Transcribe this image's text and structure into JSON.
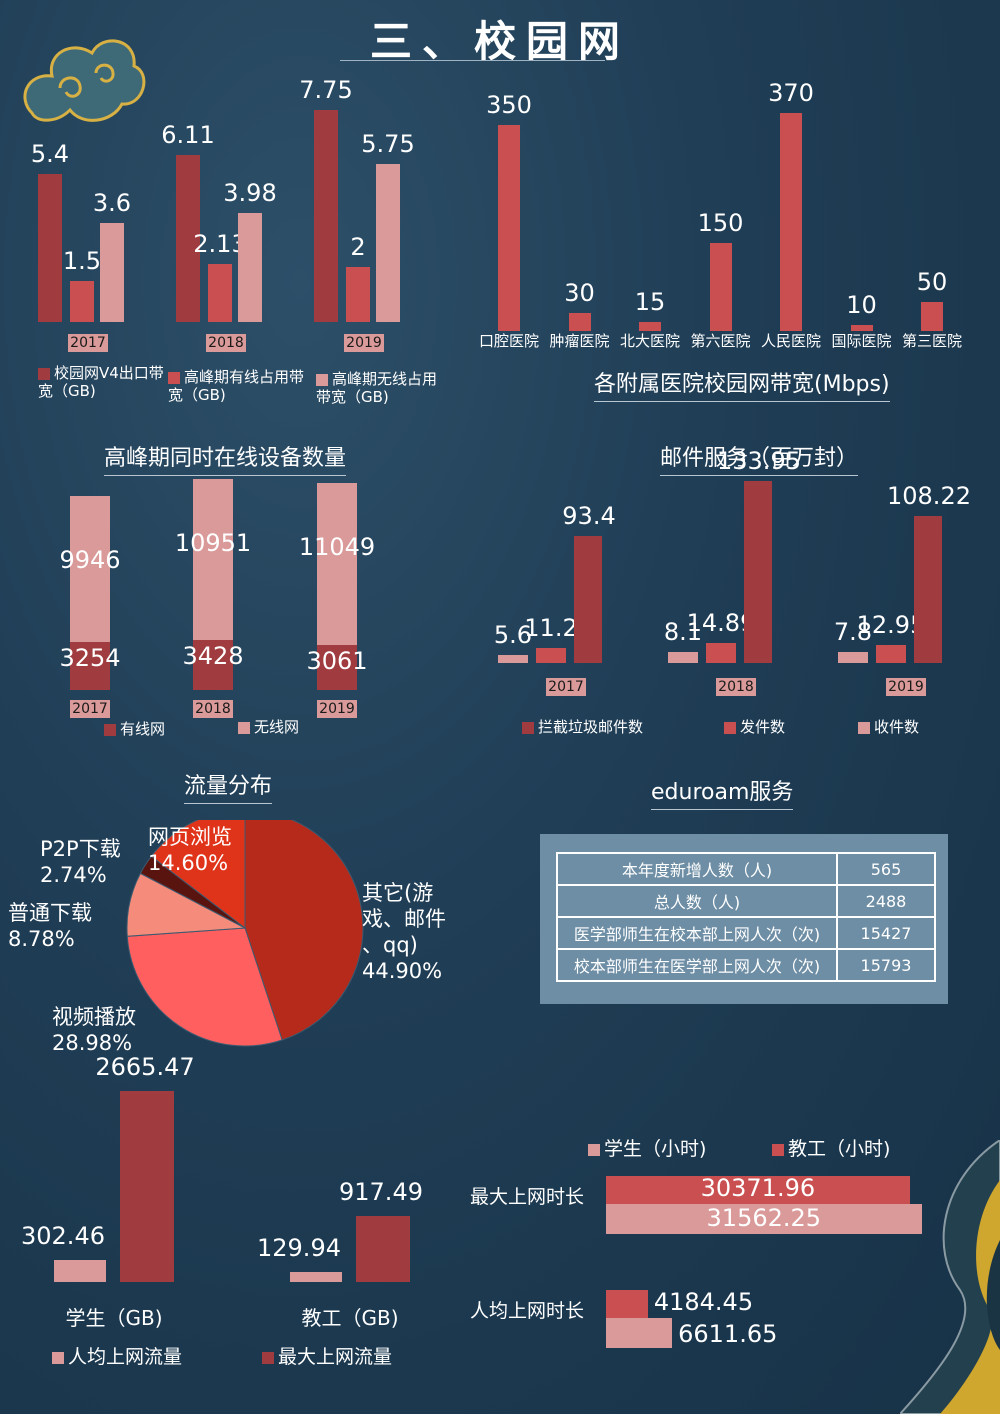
{
  "title": "三、校园网",
  "chart_bandwidth": {
    "type": "bar",
    "categories": [
      "2017",
      "2018",
      "2019"
    ],
    "series": [
      {
        "name": "校园网V4出口带宽（GB)",
        "values": [
          5.4,
          6.11,
          7.75
        ],
        "labels": [
          "5.4",
          "6.11",
          "7.75"
        ]
      },
      {
        "name": "高峰期有线占用带宽（GB)",
        "values": [
          1.5,
          2.13,
          2
        ],
        "labels": [
          "1.5",
          "2.13",
          "2"
        ]
      },
      {
        "name": "高峰期无线占用带宽（GB)",
        "values": [
          3.6,
          3.98,
          5.75
        ],
        "labels": [
          "3.6",
          "3.98",
          "5.75"
        ]
      }
    ]
  },
  "chart_hospitals": {
    "type": "bar",
    "title": "各附属医院校园网带宽(Mbps)",
    "categories": [
      "口腔医院",
      "肿瘤医院",
      "北大医院",
      "第六医院",
      "人民医院",
      "国际医院",
      "第三医院"
    ],
    "values": [
      350,
      30,
      15,
      150,
      370,
      10,
      50
    ],
    "labels": [
      "350",
      "30",
      "15",
      "150",
      "370",
      "10",
      "50"
    ]
  },
  "chart_devices": {
    "type": "bar",
    "title": "高峰期同时在线设备数量",
    "categories": [
      "2017",
      "2018",
      "2019"
    ],
    "series": [
      {
        "name": "有线网",
        "values": [
          3254,
          3428,
          3061
        ],
        "labels": [
          "3254",
          "3428",
          "3061"
        ]
      },
      {
        "name": "无线网",
        "values": [
          9946,
          10951,
          11049
        ],
        "labels": [
          "9946",
          "10951",
          "11049"
        ]
      }
    ]
  },
  "chart_mail": {
    "type": "bar",
    "title": "邮件服务（百万封）",
    "categories": [
      "2017",
      "2018",
      "2019"
    ],
    "series": [
      {
        "name": "收件数",
        "values": [
          5.6,
          8.1,
          7.8
        ],
        "labels": [
          "5.6",
          "8.1",
          "7.8"
        ]
      },
      {
        "name": "发件数",
        "values": [
          11.2,
          14.89,
          12.95
        ],
        "labels": [
          "11.2",
          "14.89",
          "12.95"
        ]
      },
      {
        "name": "拦截垃圾邮件数",
        "values": [
          93.4,
          133.95,
          108.22
        ],
        "labels": [
          "93.4",
          "133.95",
          "108.22"
        ]
      }
    ]
  },
  "chart_traffic": {
    "type": "pie",
    "title": "流量分布",
    "slices": [
      {
        "name": "其它(游戏、邮件、qq)",
        "value": 44.9,
        "lines": [
          "其它(游",
          "戏、邮件",
          "、qq)",
          "44.90%"
        ],
        "color": "#b52a1a"
      },
      {
        "name": "视频播放",
        "value": 28.98,
        "lines": [
          "视频播放",
          "28.98%"
        ],
        "color": "#ff5f5f"
      },
      {
        "name": "普通下载",
        "value": 8.78,
        "lines": [
          "普通下载",
          "8.78%"
        ],
        "color": "#f58b7b"
      },
      {
        "name": "P2P下载",
        "value": 2.74,
        "lines": [
          "P2P下载",
          "2.74%"
        ],
        "color": "#5a1410"
      },
      {
        "name": "网页浏览",
        "value": 14.6,
        "lines": [
          "网页浏览",
          "14.60%"
        ],
        "color": "#e0341a"
      }
    ]
  },
  "eduroam": {
    "title": "eduroam服务",
    "rows": [
      {
        "label": "本年度新增人数（人)",
        "value": "565"
      },
      {
        "label": "总人数（人)",
        "value": "2488"
      },
      {
        "label": "医学部师生在校本部上网人次（次)",
        "value": "15427"
      },
      {
        "label": "校本部师生在医学部上网人次（次)",
        "value": "15793"
      }
    ]
  },
  "chart_flow": {
    "type": "bar",
    "categories": [
      "学生（GB)",
      "教工（GB)"
    ],
    "series": [
      {
        "name": "人均上网流量",
        "values": [
          302.46,
          129.94
        ],
        "labels": [
          "302.46",
          "129.94"
        ]
      },
      {
        "name": "最大上网流量",
        "values": [
          2665.47,
          917.49
        ],
        "labels": [
          "2665.47",
          "917.49"
        ]
      }
    ]
  },
  "chart_time": {
    "type": "bar",
    "orientation": "horizontal",
    "categories": [
      "最大上网时长",
      "人均上网时长"
    ],
    "series": [
      {
        "name": "学生（小时)",
        "values": [
          31562.25,
          6611.65
        ],
        "labels": [
          "31562.25",
          "6611.65"
        ]
      },
      {
        "name": "教工（小时)",
        "values": [
          30371.96,
          4184.45
        ],
        "labels": [
          "30371.96",
          "4184.45"
        ]
      }
    ]
  },
  "colors": {
    "dark_red": "#a03c3f",
    "mid_red": "#c94f50",
    "light_pink": "#d99a99",
    "accent_gold": "#e8b730"
  }
}
